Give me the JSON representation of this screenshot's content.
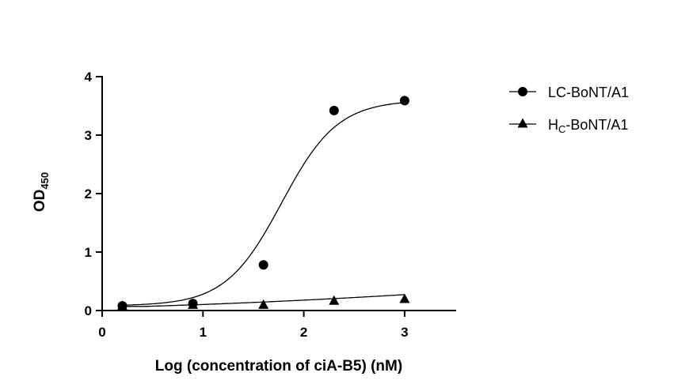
{
  "chart_data": {
    "type": "scatter",
    "xlabel": "Log (concentration of ciA-B5) (nM)",
    "ylabel": {
      "main": "OD",
      "sub": "450"
    },
    "xlim": [
      0,
      3.5
    ],
    "ylim": [
      0,
      4
    ],
    "xticks": [
      "0",
      "1",
      "2",
      "3"
    ],
    "yticks": [
      "0",
      "1",
      "2",
      "3",
      "4"
    ],
    "grid": false,
    "legend_position": "top-right",
    "series": [
      {
        "name": "LC-BoNT/A1",
        "name_parts": {
          "main": "LC-BoNT/A1",
          "sub": "",
          "rest": ""
        },
        "marker": "circle",
        "fit": "sigmoid",
        "x": [
          0.2,
          0.9,
          1.6,
          2.3,
          3.0
        ],
        "y": [
          0.08,
          0.12,
          0.78,
          3.42,
          3.59
        ]
      },
      {
        "name": "HC-BoNT/A1",
        "name_parts": {
          "main": "H",
          "sub": "C",
          "rest": "-BoNT/A1"
        },
        "marker": "triangle",
        "fit": "linear",
        "x": [
          0.2,
          0.9,
          1.6,
          2.3,
          3.0
        ],
        "y": [
          0.07,
          0.09,
          0.09,
          0.16,
          0.19
        ]
      }
    ]
  }
}
